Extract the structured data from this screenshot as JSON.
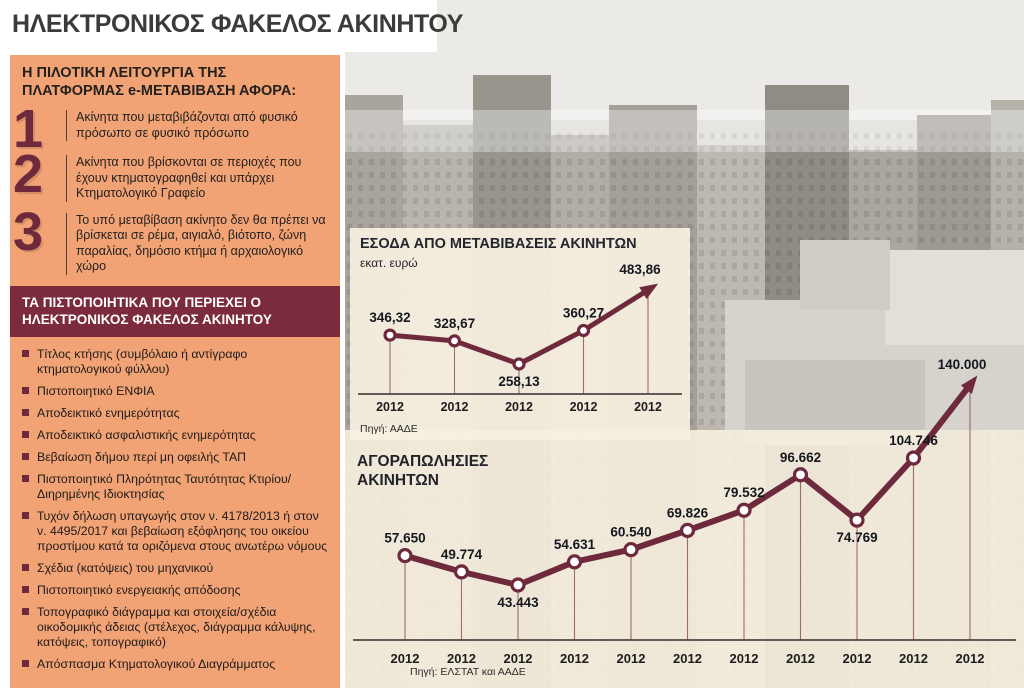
{
  "page_title": "ΗΛΕΚΤΡΟΝΙΚΟΣ ΦΑΚΕΛΟΣ ΑΚΙΝΗΤΟΥ",
  "colors": {
    "accent_maroon": "#6E2A3C",
    "panel_orange": "#F2A376",
    "header_maroon": "#7B2B3B",
    "chart_cream": "#F7EFDF",
    "title_gray": "#3C3B39"
  },
  "left_panel": {
    "header1": "Η ΠΙΛΟΤΙΚΗ ΛΕΙΤΟΥΡΓΙΑ ΤΗΣ ΠΛΑΤΦΟΡΜΑΣ e-ΜΕΤΑΒΙΒΑΣΗ ΑΦΟΡΑ:",
    "numbered_items": [
      {
        "num": "1",
        "text": "Ακίνητα που μεταβιβάζονται από φυσικό πρόσωπο σε φυσικό πρόσωπο"
      },
      {
        "num": "2",
        "text": "Ακίνητα που βρίσκονται σε περιοχές που έχουν κτηματογραφηθεί και υπάρχει Κτηματολογικό Γραφείο"
      },
      {
        "num": "3",
        "text": "Το υπό μεταβίβαση ακίνητο δεν θα πρέπει να βρίσκεται σε ρέμα, αιγιαλό, βιότοπο, ζώνη παραλίας, δημόσιο κτήμα ή αρχαιολογικό χώρο"
      }
    ],
    "header2": "ΤΑ ΠΙΣΤΟΠΟΙΗΤΙΚΑ ΠΟΥ ΠΕΡΙΕΧΕΙ Ο ΗΛΕΚΤΡΟΝΙΚΟΣ ΦΑΚΕΛΟΣ ΑΚΙΝΗΤΟΥ",
    "bullet_items": [
      "Τίτλος κτήσης (συμβόλαιο ή αντίγραφο κτηματολογικού φύλλου)",
      "Πιστοποιητικό ΕΝΦΙΑ",
      "Αποδεικτικό ενημερότητας",
      "Αποδεικτικό ασφαλιστικής ενημερότητας",
      "Βεβαίωση δήμου περί μη οφειλής ΤΑΠ",
      "Πιστοποιητικό Πληρότητας Ταυτότητας Κτιρίου/ Διηρημένης Ιδιοκτησίας",
      "Τυχόν δήλωση υπαγωγής στον ν. 4178/2013 ή στον ν. 4495/2017 και βεβαίωση εξόφλησης του οικείου προστίμου κατά τα οριζόμενα στους ανωτέρω νόμους",
      "Σχέδια (κατόψεις) του μηχανικού",
      "Πιστοποιητικό ενεργειακής απόδοσης",
      "Τοπογραφικό διάγραμμα και στοιχεία/σχέδια οικοδομικής άδειας (στέλεχος, διάγραμμα κάλυψης, κατόψεις, τοπογραφικό)",
      "Απόσπασμα Κτηματολογικού Διαγράμματος"
    ]
  },
  "chart_data": [
    {
      "type": "line",
      "title": "ΕΣΟΔΑ ΑΠΟ ΜΕΤΑΒΙΒΑΣΕΙΣ ΑΚΙΝΗΤΩΝ",
      "unit_label": "εκατ. ευρώ",
      "categories": [
        "2012",
        "2012",
        "2012",
        "2012",
        "2012"
      ],
      "values": [
        346.32,
        328.67,
        258.13,
        360.27,
        483.86
      ],
      "value_labels": [
        "346,32",
        "328,67",
        "258,13",
        "360,27",
        "483,86"
      ],
      "ylim": [
        258.13,
        483.86
      ],
      "grid": false,
      "legend": false,
      "arrow_end": true,
      "line_color": "#6E2A3C",
      "source": "Πηγή: ΑΑΔΕ"
    },
    {
      "type": "line",
      "title": "ΑΓΟΡΑΠΩΛΗΣΙΕΣ ΑΚΙΝΗΤΩΝ",
      "unit_label": "",
      "categories": [
        "2012",
        "2012",
        "2012",
        "2012",
        "2012",
        "2012",
        "2012",
        "2012",
        "2012",
        "2012",
        "2012"
      ],
      "values": [
        57650,
        49774,
        43443,
        54631,
        60540,
        69826,
        79532,
        96662,
        74769,
        104746,
        140000
      ],
      "value_labels": [
        "57.650",
        "49.774",
        "43.443",
        "54.631",
        "60.540",
        "69.826",
        "79.532",
        "96.662",
        "74.769",
        "104.746",
        "140.000"
      ],
      "ylim": [
        43443,
        140000
      ],
      "grid": false,
      "legend": false,
      "arrow_end": true,
      "line_color": "#6E2A3C",
      "source": "Πηγή: ΕΛΣΤΑΤ και ΑΑΔΕ"
    }
  ]
}
